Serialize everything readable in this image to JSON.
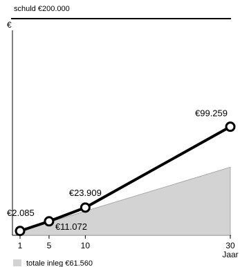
{
  "chart_data": {
    "type": "line",
    "debt_label": "schuld €200.000",
    "debt_value": 200000,
    "y_unit": "€",
    "x_unit": "Jaar",
    "x_ticks": [
      "1",
      "5",
      "10",
      "30"
    ],
    "x": [
      1,
      5,
      10,
      30
    ],
    "series": [
      {
        "values": [
          2085,
          11072,
          23909,
          99259
        ],
        "labels": [
          "€2.085",
          "€11.072",
          "€23.909",
          "€99.259"
        ]
      }
    ],
    "total_contribution": {
      "label": "totale inleg €61.560",
      "value": 61560
    },
    "colors": {
      "line": "#000000",
      "area": "#d3d3d3",
      "area_edge": "#999999"
    }
  }
}
